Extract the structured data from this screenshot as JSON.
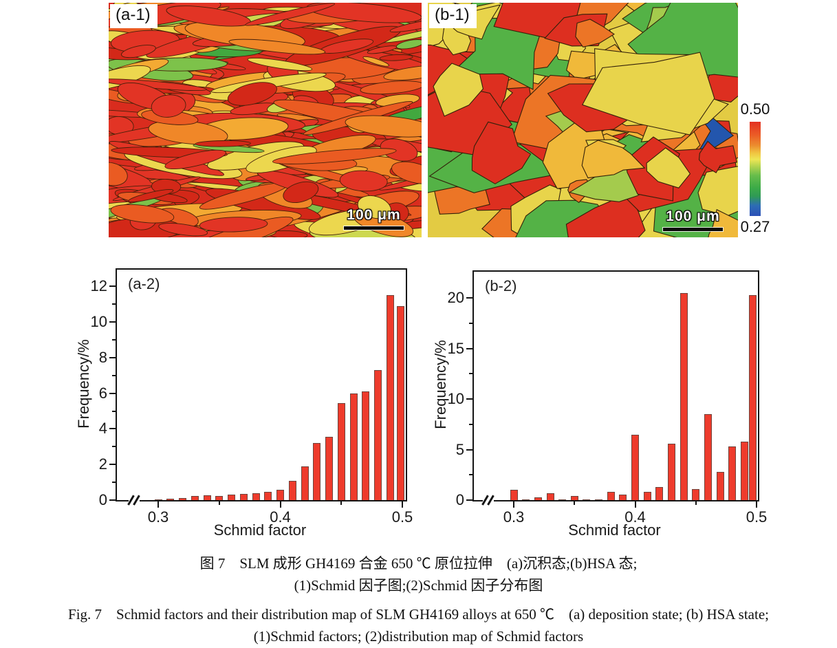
{
  "maps": {
    "a1": {
      "label": "(a-1)",
      "scale_bar": "100 μm"
    },
    "b1": {
      "label": "(b-1)",
      "scale_bar": "100 μm"
    }
  },
  "colorbar": {
    "max": "0.50",
    "min": "0.27",
    "gradient_stops": [
      "#e33122 0%",
      "#eb5c26 14%",
      "#ec8c2e 25%",
      "#f0c340 33%",
      "#eee655 40%",
      "#b5d44f 47%",
      "#67bd4b 57%",
      "#3cab47 70%",
      "#2f9a55 79%",
      "#2d6cb5 89%",
      "#2b50b7 100%"
    ]
  },
  "chart_data": [
    {
      "type": "bar",
      "panel": "(a-2)",
      "xlabel": "Schmid factor",
      "ylabel": "Frequency/%",
      "x": [
        0.3,
        0.31,
        0.32,
        0.33,
        0.34,
        0.35,
        0.36,
        0.37,
        0.38,
        0.39,
        0.4,
        0.41,
        0.42,
        0.43,
        0.44,
        0.45,
        0.46,
        0.47,
        0.48,
        0.49,
        0.5
      ],
      "values": [
        0.03,
        0.07,
        0.13,
        0.25,
        0.28,
        0.22,
        0.3,
        0.35,
        0.38,
        0.45,
        0.6,
        1.1,
        1.9,
        3.2,
        3.55,
        5.45,
        6.0,
        6.1,
        7.3,
        11.5,
        10.9
      ],
      "xticks": [
        0.3,
        0.4,
        0.5
      ],
      "xminor_ticks": [
        0.35,
        0.45
      ],
      "yticks": [
        0,
        2,
        4,
        6,
        8,
        10,
        12
      ],
      "ylim": [
        0,
        13
      ],
      "xlim": [
        0.28,
        0.505
      ],
      "axis_break_x": true,
      "grid": false,
      "bar_color": "#ee3b2c"
    },
    {
      "type": "bar",
      "panel": "(b-2)",
      "xlabel": "Schmid factor",
      "ylabel": "Frequency/%",
      "x": [
        0.3,
        0.31,
        0.32,
        0.33,
        0.34,
        0.35,
        0.36,
        0.37,
        0.38,
        0.39,
        0.4,
        0.41,
        0.42,
        0.43,
        0.44,
        0.45,
        0.46,
        0.47,
        0.48,
        0.49,
        0.5
      ],
      "values": [
        1.0,
        0.07,
        0.3,
        0.65,
        0.02,
        0.4,
        0.08,
        0.02,
        0.8,
        0.55,
        6.5,
        0.8,
        1.3,
        5.6,
        20.5,
        1.1,
        8.5,
        2.8,
        5.3,
        5.8,
        20.3
      ],
      "xticks": [
        0.3,
        0.4,
        0.5
      ],
      "xminor_ticks": [
        0.35,
        0.45
      ],
      "yticks": [
        0,
        5,
        10,
        15,
        20
      ],
      "ylim": [
        0,
        22.6
      ],
      "xlim": [
        0.28,
        0.505
      ],
      "axis_break_x": true,
      "grid": false,
      "bar_color": "#ee3b2c"
    }
  ],
  "captions": {
    "zh_line1": "图 7　SLM 成形 GH4169 合金 650 ℃ 原位拉伸　(a)沉积态;(b)HSA 态;",
    "zh_line2": "(1)Schmid 因子图;(2)Schmid 因子分布图",
    "en_line1": "Fig. 7　Schmid factors and their distribution map of SLM GH4169 alloys at 650 ℃　(a) deposition state; (b) HSA state;",
    "en_line2": "(1)Schmid factors; (2)distribution map of Schmid factors"
  },
  "map_palettes": {
    "a1": {
      "bg": "#d92c1e",
      "boundary": "#46200a",
      "colors": [
        [
          "#e23425",
          0.28
        ],
        [
          "#d32818",
          0.17
        ],
        [
          "#ea5b22",
          0.16
        ],
        [
          "#f08728",
          0.12
        ],
        [
          "#f3aa33",
          0.06
        ],
        [
          "#ecd74e",
          0.11
        ],
        [
          "#cdd84f",
          0.04
        ],
        [
          "#7dc24a",
          0.04
        ],
        [
          "#42a83f",
          0.02
        ]
      ]
    },
    "b1": {
      "bg": "#e3cb43",
      "boundary": "#33210a",
      "colors": [
        [
          "#dd2f20",
          0.27
        ],
        [
          "#ec7526",
          0.15
        ],
        [
          "#e8d44b",
          0.26
        ],
        [
          "#f0b93a",
          0.07
        ],
        [
          "#a4cb4d",
          0.08
        ],
        [
          "#54b246",
          0.11
        ],
        [
          "#2f8f3f",
          0.02
        ],
        [
          "#2356ad",
          0.04
        ]
      ]
    }
  }
}
